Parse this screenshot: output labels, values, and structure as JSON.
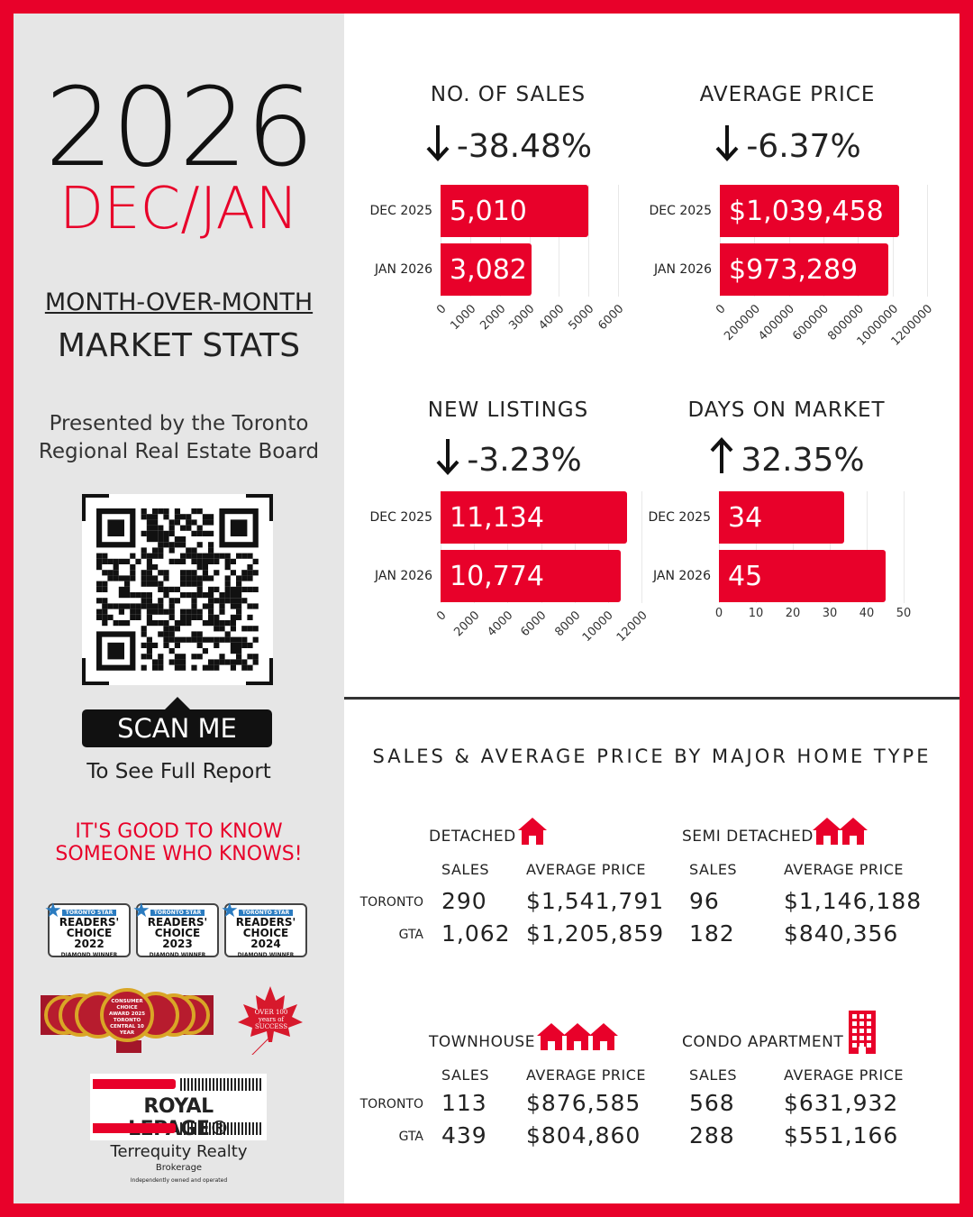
{
  "colors": {
    "accent": "#e8012a",
    "panel": "#e6e6e6",
    "dark": "#111111"
  },
  "left": {
    "year": "2026",
    "month": "DEC/JAN",
    "mom": "MONTH-OVER-MONTH",
    "market_stats": "MARKET STATS",
    "presented_line1": "Presented by the Toronto",
    "presented_line2": "Regional Real Estate Board",
    "scan": "SCAN ME",
    "see": "To See Full Report",
    "slogan1": "IT'S GOOD TO KNOW",
    "slogan2": "SOMEONE WHO KNOWS!",
    "badges": [
      {
        "top": "TORONTO STAR",
        "l1": "READERS'",
        "l2": "CHOICE 2022",
        "l3": "DIAMOND WINNER"
      },
      {
        "top": "TORONTO STAR",
        "l1": "READERS'",
        "l2": "CHOICE 2023",
        "l3": "DIAMOND WINNER"
      },
      {
        "top": "TORONTO STAR",
        "l1": "READERS'",
        "l2": "CHOICE 2024",
        "l3": "DIAMOND WINNER"
      }
    ],
    "consumer_award": "CONSUMER CHOICE AWARD 2025 TORONTO CENTRAL 10 YEAR",
    "leaf_text": "OVER 100 years of SUCCESS",
    "logo": "ROYAL LEPAGE®",
    "brokerage_name": "Terrequity Realty",
    "brokerage": "Brokerage",
    "independent": "Independently owned and operated"
  },
  "chart_data": [
    {
      "type": "bar",
      "orientation": "horizontal",
      "title": "NO. OF SALES",
      "change": "-38.48%",
      "direction": "down",
      "categories": [
        "DEC 2025",
        "JAN 2026"
      ],
      "values": [
        5010,
        3082
      ],
      "labels": [
        "5,010",
        "3,082"
      ],
      "xlim": [
        0,
        6000
      ],
      "ticks": [
        0,
        1000,
        2000,
        3000,
        4000,
        5000,
        6000
      ],
      "tick_rotated": true
    },
    {
      "type": "bar",
      "orientation": "horizontal",
      "title": "AVERAGE PRICE",
      "change": "-6.37%",
      "direction": "down",
      "categories": [
        "DEC 2025",
        "JAN 2026"
      ],
      "values": [
        1039458,
        973289
      ],
      "labels": [
        "$1,039,458",
        "$973,289"
      ],
      "xlim": [
        0,
        1200000
      ],
      "ticks": [
        0,
        200000,
        400000,
        600000,
        800000,
        1000000,
        1200000
      ],
      "tick_rotated": true
    },
    {
      "type": "bar",
      "orientation": "horizontal",
      "title": "NEW LISTINGS",
      "change": "-3.23%",
      "direction": "down",
      "categories": [
        "DEC 2025",
        "JAN 2026"
      ],
      "values": [
        11134,
        10774
      ],
      "labels": [
        "11,134",
        "10,774"
      ],
      "xlim": [
        0,
        12000
      ],
      "ticks": [
        0,
        2000,
        4000,
        6000,
        8000,
        10000,
        12000
      ],
      "tick_rotated": true
    },
    {
      "type": "bar",
      "orientation": "horizontal",
      "title": "DAYS ON MARKET",
      "change": "32.35%",
      "direction": "up",
      "categories": [
        "DEC 2025",
        "JAN 2026"
      ],
      "values": [
        34,
        45
      ],
      "labels": [
        "34",
        "45"
      ],
      "xlim": [
        0,
        50
      ],
      "ticks": [
        0,
        10,
        20,
        30,
        40,
        50
      ],
      "tick_rotated": false
    }
  ],
  "home_types": {
    "title": "SALES & AVERAGE PRICE BY MAJOR HOME TYPE",
    "sales_label": "SALES",
    "price_label": "AVERAGE PRICE",
    "types": [
      {
        "name": "DETACHED",
        "icon": "house-icon",
        "rows": [
          {
            "region": "TORONTO",
            "sales": "290",
            "price": "$1,541,791"
          },
          {
            "region": "GTA",
            "sales": "1,062",
            "price": "$1,205,859"
          }
        ]
      },
      {
        "name": "SEMI DETACHED",
        "icon": "semi-house-icon",
        "rows": [
          {
            "region": "TORONTO",
            "sales": "96",
            "price": "$1,146,188"
          },
          {
            "region": "GTA",
            "sales": "182",
            "price": "$840,356"
          }
        ]
      },
      {
        "name": "TOWNHOUSE",
        "icon": "townhouse-icon",
        "rows": [
          {
            "region": "TORONTO",
            "sales": "113",
            "price": "$876,585"
          },
          {
            "region": "GTA",
            "sales": "439",
            "price": "$804,860"
          }
        ]
      },
      {
        "name": "CONDO APARTMENT",
        "icon": "apartment-building-icon",
        "rows": [
          {
            "region": "TORONTO",
            "sales": "568",
            "price": "$631,932"
          },
          {
            "region": "GTA",
            "sales": "288",
            "price": "$551,166"
          }
        ]
      }
    ]
  }
}
